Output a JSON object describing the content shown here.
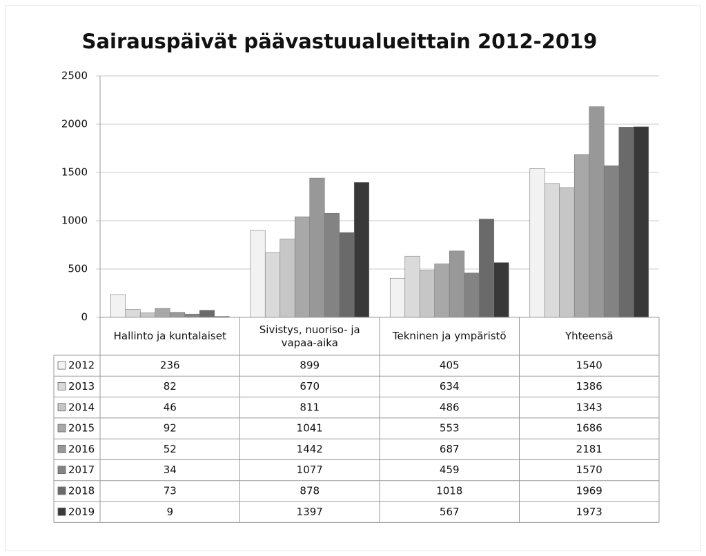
{
  "chart_data": {
    "type": "bar",
    "title": "Sairauspäivät päävastuualueittain 2012-2019",
    "categories": [
      "Hallinto ja kuntalaiset",
      "Sivistys, nuoriso- ja vapaa-aika",
      "Tekninen ja ympäristö",
      "Yhteensä"
    ],
    "series": [
      {
        "name": "2012",
        "color": "#f2f2f2",
        "values": [
          236,
          899,
          405,
          1540
        ]
      },
      {
        "name": "2013",
        "color": "#dadada",
        "values": [
          82,
          670,
          634,
          1386
        ]
      },
      {
        "name": "2014",
        "color": "#c6c6c6",
        "values": [
          46,
          811,
          486,
          1343
        ]
      },
      {
        "name": "2015",
        "color": "#a8a8a8",
        "values": [
          92,
          1041,
          553,
          1686
        ]
      },
      {
        "name": "2016",
        "color": "#989898",
        "values": [
          52,
          1442,
          687,
          2181
        ]
      },
      {
        "name": "2017",
        "color": "#838383",
        "values": [
          34,
          1077,
          459,
          1570
        ]
      },
      {
        "name": "2018",
        "color": "#6a6a6a",
        "values": [
          73,
          878,
          1018,
          1969
        ]
      },
      {
        "name": "2019",
        "color": "#383838",
        "values": [
          9,
          1397,
          567,
          1973
        ]
      }
    ],
    "ylim": [
      0,
      2500
    ],
    "yticks": [
      0,
      500,
      1000,
      1500,
      2000,
      2500
    ],
    "grid": true
  }
}
